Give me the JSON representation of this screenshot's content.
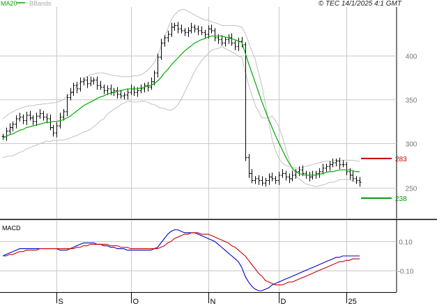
{
  "credit": "© TEC 14/1/2025 4:1 GMT",
  "legend": {
    "ma_label": "MA20",
    "bb_label": "BBands"
  },
  "macd_label": "MACD",
  "colors": {
    "ma": "#00aa00",
    "bbands": "#c0c0c0",
    "candle": "#000000",
    "grid": "#c8c8c8",
    "macd": "#0000cc",
    "signal": "#cc0000",
    "resistance": "#cc0000",
    "support": "#009900"
  },
  "chart_data": [
    {
      "type": "line",
      "name": "price-panel",
      "ylim": [
        215,
        455
      ],
      "yticks": [
        250,
        300,
        350,
        400
      ],
      "ytick_labels": [
        "250",
        "300",
        "350",
        "400"
      ],
      "xticks": [
        {
          "label": "S",
          "index": 16
        },
        {
          "label": "O",
          "index": 38
        },
        {
          "label": "N",
          "index": 61
        },
        {
          "label": "D",
          "index": 82
        },
        {
          "label": "25",
          "index": 102
        }
      ],
      "ohlc_close": [
        308,
        314,
        318,
        322,
        328,
        330,
        326,
        332,
        329,
        325,
        331,
        334,
        330,
        328,
        318,
        312,
        320,
        330,
        336,
        352,
        358,
        366,
        362,
        370,
        372,
        368,
        371,
        372,
        366,
        364,
        360,
        362,
        358,
        360,
        356,
        354,
        355,
        358,
        362,
        358,
        360,
        362,
        366,
        364,
        370,
        380,
        398,
        414,
        420,
        424,
        432,
        434,
        430,
        428,
        426,
        428,
        432,
        430,
        428,
        426,
        424,
        430,
        428,
        420,
        418,
        414,
        418,
        420,
        414,
        410,
        416,
        412,
        284,
        266,
        258,
        260,
        258,
        255,
        258,
        262,
        260,
        258,
        264,
        266,
        262,
        260,
        264,
        268,
        270,
        266,
        264,
        262,
        264,
        266,
        268,
        272,
        274,
        276,
        278,
        280,
        276,
        276,
        268,
        264,
        260,
        258,
        256
      ],
      "ma20": [
        306,
        308,
        310,
        311,
        313,
        315,
        316,
        318,
        319,
        320,
        321,
        322,
        323,
        324,
        324,
        325,
        325,
        326,
        327,
        329,
        331,
        334,
        337,
        340,
        343,
        345,
        347,
        349,
        351,
        353,
        354,
        356,
        357,
        358,
        359,
        360,
        361,
        362,
        362,
        362,
        362,
        363,
        364,
        365,
        366,
        368,
        371,
        375,
        380,
        384,
        389,
        393,
        397,
        401,
        405,
        408,
        411,
        414,
        416,
        418,
        419,
        421,
        422,
        422,
        422,
        422,
        421,
        420,
        419,
        418,
        416,
        415,
        403,
        391,
        380,
        369,
        358,
        347,
        337,
        327,
        318,
        309,
        301,
        293,
        285,
        278,
        272,
        268,
        266,
        265,
        264,
        264,
        264,
        264,
        265,
        266,
        267,
        268,
        268,
        269,
        270,
        270,
        270,
        270,
        269,
        268,
        268
      ],
      "bb_upper": [
        328,
        331,
        334,
        336,
        338,
        340,
        341,
        342,
        343,
        343,
        344,
        344,
        345,
        345,
        346,
        346,
        347,
        348,
        350,
        353,
        356,
        360,
        365,
        369,
        373,
        376,
        378,
        379,
        380,
        380,
        380,
        379,
        378,
        377,
        377,
        376,
        376,
        376,
        376,
        377,
        377,
        378,
        380,
        383,
        387,
        392,
        400,
        410,
        420,
        430,
        440,
        446,
        450,
        452,
        452,
        450,
        448,
        446,
        444,
        442,
        440,
        440,
        438,
        437,
        436,
        434,
        434,
        434,
        434,
        434,
        433,
        432,
        425,
        415,
        405,
        395,
        380,
        365,
        345,
        325,
        305,
        292,
        283,
        278,
        275,
        274,
        273,
        272,
        272,
        273,
        274,
        275,
        276,
        277,
        278,
        279,
        280,
        280,
        280,
        281,
        281,
        281,
        281,
        281,
        281,
        280,
        280
      ],
      "bb_lower": [
        284,
        285,
        286,
        286,
        288,
        290,
        291,
        294,
        295,
        297,
        298,
        300,
        301,
        303,
        302,
        304,
        303,
        304,
        304,
        305,
        306,
        308,
        309,
        311,
        313,
        314,
        316,
        319,
        322,
        326,
        328,
        333,
        336,
        339,
        341,
        344,
        346,
        348,
        348,
        347,
        347,
        348,
        348,
        347,
        345,
        344,
        342,
        340,
        340,
        338,
        338,
        340,
        344,
        350,
        358,
        366,
        374,
        382,
        388,
        394,
        398,
        402,
        406,
        407,
        408,
        410,
        408,
        406,
        404,
        402,
        399,
        398,
        381,
        367,
        355,
        343,
        336,
        329,
        329,
        329,
        331,
        326,
        319,
        308,
        295,
        282,
        271,
        264,
        260,
        257,
        254,
        253,
        252,
        251,
        252,
        253,
        254,
        256,
        256,
        257,
        259,
        259,
        259,
        259,
        257,
        256,
        256
      ],
      "levels": [
        {
          "label": "283",
          "value": 283,
          "kind": "resistance"
        },
        {
          "label": "238",
          "value": 238,
          "kind": "support"
        }
      ]
    },
    {
      "type": "line",
      "name": "macd-panel",
      "ylim": [
        -24,
        24
      ],
      "yticks": [
        10,
        -10
      ],
      "ytick_labels": [
        "0.10",
        "-0.10"
      ],
      "series": [
        {
          "name": "MACD",
          "values": [
            0,
            1,
            2,
            3,
            4,
            5,
            5,
            5,
            5,
            5,
            5,
            5,
            5,
            5,
            5,
            5,
            5,
            4,
            4,
            4,
            5,
            6,
            7,
            8,
            9,
            9,
            9,
            9,
            8,
            8,
            7,
            7,
            6,
            6,
            5,
            5,
            5,
            4,
            4,
            4,
            4,
            4,
            4,
            4,
            4,
            5,
            6,
            9,
            12,
            15,
            17,
            18,
            18,
            17,
            16,
            16,
            16,
            16,
            15,
            14,
            13,
            12,
            11,
            10,
            8,
            6,
            4,
            2,
            0,
            -2,
            -4,
            -8,
            -14,
            -18,
            -21,
            -23,
            -24,
            -24,
            -23,
            -22,
            -20,
            -19,
            -18,
            -17,
            -16,
            -15,
            -14,
            -13,
            -12,
            -11,
            -10,
            -9,
            -8,
            -7,
            -6,
            -5,
            -4,
            -3,
            -2,
            -1,
            -1,
            0,
            0,
            0,
            0,
            0,
            0
          ]
        },
        {
          "name": "Signal",
          "values": [
            0,
            0,
            1,
            1,
            2,
            3,
            3,
            4,
            4,
            4,
            4,
            5,
            5,
            5,
            5,
            5,
            5,
            5,
            5,
            5,
            5,
            5,
            6,
            6,
            7,
            7,
            8,
            8,
            8,
            8,
            8,
            8,
            7,
            7,
            7,
            6,
            6,
            6,
            5,
            5,
            5,
            5,
            5,
            5,
            5,
            5,
            5,
            6,
            7,
            9,
            10,
            12,
            13,
            14,
            15,
            15,
            16,
            16,
            16,
            15,
            15,
            15,
            14,
            13,
            12,
            11,
            10,
            9,
            7,
            6,
            4,
            2,
            0,
            -3,
            -6,
            -9,
            -12,
            -14,
            -17,
            -18,
            -19,
            -20,
            -20,
            -20,
            -19,
            -18,
            -18,
            -17,
            -16,
            -15,
            -14,
            -13,
            -12,
            -11,
            -10,
            -9,
            -8,
            -7,
            -6,
            -5,
            -4,
            -4,
            -3,
            -3,
            -2,
            -2,
            -2
          ]
        }
      ]
    }
  ]
}
